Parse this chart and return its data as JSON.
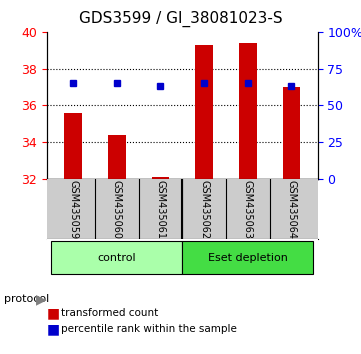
{
  "title": "GDS3599 / GI_38081023-S",
  "samples": [
    "GSM435059",
    "GSM435060",
    "GSM435061",
    "GSM435062",
    "GSM435063",
    "GSM435064"
  ],
  "red_values": [
    35.6,
    34.4,
    32.1,
    39.3,
    39.4,
    37.0
  ],
  "blue_values_pct": [
    65,
    65,
    63,
    65,
    65,
    63
  ],
  "ylim_left": [
    32,
    40
  ],
  "ylim_right": [
    0,
    100
  ],
  "yticks_left": [
    32,
    34,
    36,
    38,
    40
  ],
  "yticks_right": [
    0,
    25,
    50,
    75,
    100
  ],
  "ytick_labels_right": [
    "0",
    "25",
    "50",
    "75",
    "100%"
  ],
  "groups": [
    {
      "label": "control",
      "start": 0,
      "end": 3,
      "color": "#aaffaa"
    },
    {
      "label": "Eset depletion",
      "start": 3,
      "end": 6,
      "color": "#44dd44"
    }
  ],
  "protocol_label": "protocol",
  "legend_items": [
    {
      "color": "#cc0000",
      "label": "transformed count"
    },
    {
      "color": "#0000cc",
      "label": "percentile rank within the sample"
    }
  ],
  "bar_color": "#cc0000",
  "marker_color": "#0000cc",
  "grid_color": "#000000",
  "background_plot": "#ffffff",
  "background_samples": "#cccccc",
  "bar_width": 0.4,
  "title_fontsize": 11,
  "tick_fontsize": 9
}
